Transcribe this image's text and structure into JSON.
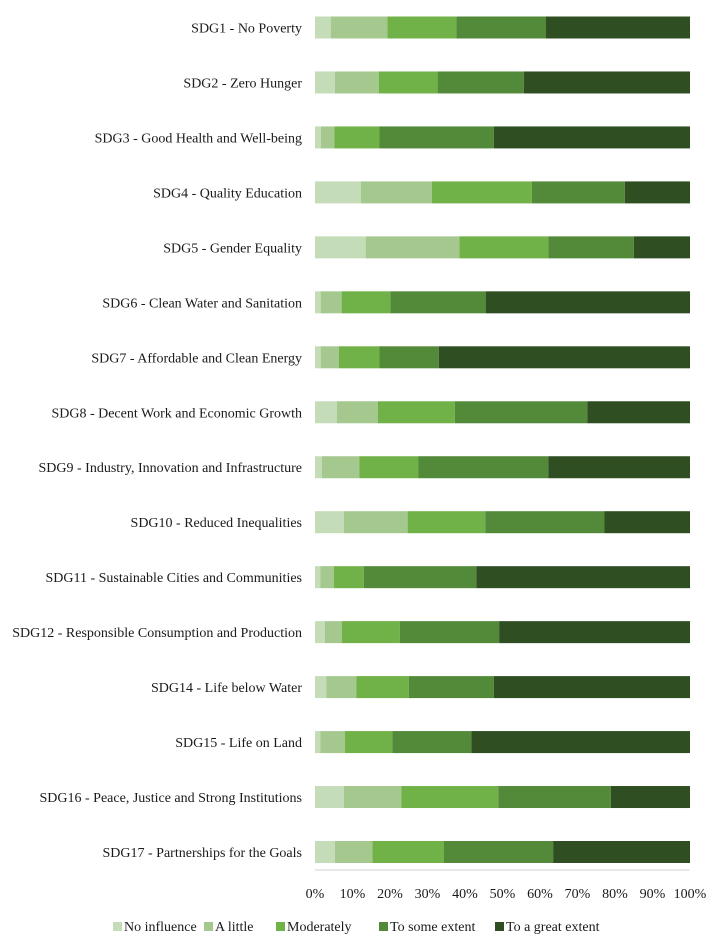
{
  "chart_data": {
    "type": "bar",
    "orientation": "horizontal",
    "stacked": "percent",
    "title": "",
    "xlabel": "",
    "ylabel": "",
    "xlim": [
      0,
      100
    ],
    "x_ticks": [
      "0%",
      "10%",
      "20%",
      "30%",
      "40%",
      "50%",
      "60%",
      "70%",
      "80%",
      "90%",
      "100%"
    ],
    "grid": false,
    "legend_position": "bottom",
    "categories": [
      "SDG1 - No Poverty",
      "SDG2 - Zero Hunger",
      "SDG3 - Good Health and Well-being",
      "SDG4 - Quality Education",
      "SDG5 - Gender Equality",
      "SDG6 - Clean Water and Sanitation",
      "SDG7 - Affordable and Clean Energy",
      "SDG8 - Decent Work and Economic Growth",
      "SDG9 - Industry, Innovation and Infrastructure",
      "SDG10 - Reduced Inequalities",
      "SDG11 - Sustainable Cities and Communities",
      "SDG12 - Responsible Consumption and Production",
      "SDG14 - Life below Water",
      "SDG15 - Life on Land",
      "SDG16 - Peace, Justice and Strong Institutions",
      "SDG17 - Partnerships for the Goals"
    ],
    "series": [
      {
        "name": "No influence",
        "color": "#c5dcb9",
        "values": [
          4.2,
          5.3,
          1.6,
          12.2,
          13.5,
          1.5,
          1.5,
          5.8,
          1.8,
          7.7,
          1.4,
          2.6,
          3.0,
          1.4,
          7.7,
          5.3
        ]
      },
      {
        "name": "A little",
        "color": "#a5c88f",
        "values": [
          15.1,
          11.7,
          3.6,
          19.0,
          25.0,
          5.6,
          4.9,
          11.0,
          10.0,
          17.0,
          3.6,
          4.6,
          8.0,
          6.6,
          15.3,
          10.0
        ]
      },
      {
        "name": "Moderately",
        "color": "#70b248",
        "values": [
          18.4,
          15.7,
          12.0,
          26.6,
          23.7,
          13.0,
          10.8,
          20.5,
          15.8,
          20.7,
          8.0,
          15.4,
          14.0,
          12.6,
          25.9,
          19.1
        ]
      },
      {
        "name": "To some extent",
        "color": "#528a3a",
        "values": [
          23.9,
          23.0,
          30.5,
          24.8,
          22.8,
          25.5,
          15.8,
          35.3,
          34.6,
          31.8,
          30.0,
          26.5,
          22.7,
          21.1,
          30.0,
          29.1
        ]
      },
      {
        "name": "To a great extent",
        "color": "#2f4f22",
        "values": [
          38.4,
          44.3,
          52.3,
          17.4,
          15.0,
          54.4,
          67.0,
          27.4,
          37.8,
          22.8,
          57.0,
          50.9,
          52.3,
          58.3,
          21.1,
          36.5
        ]
      }
    ]
  }
}
